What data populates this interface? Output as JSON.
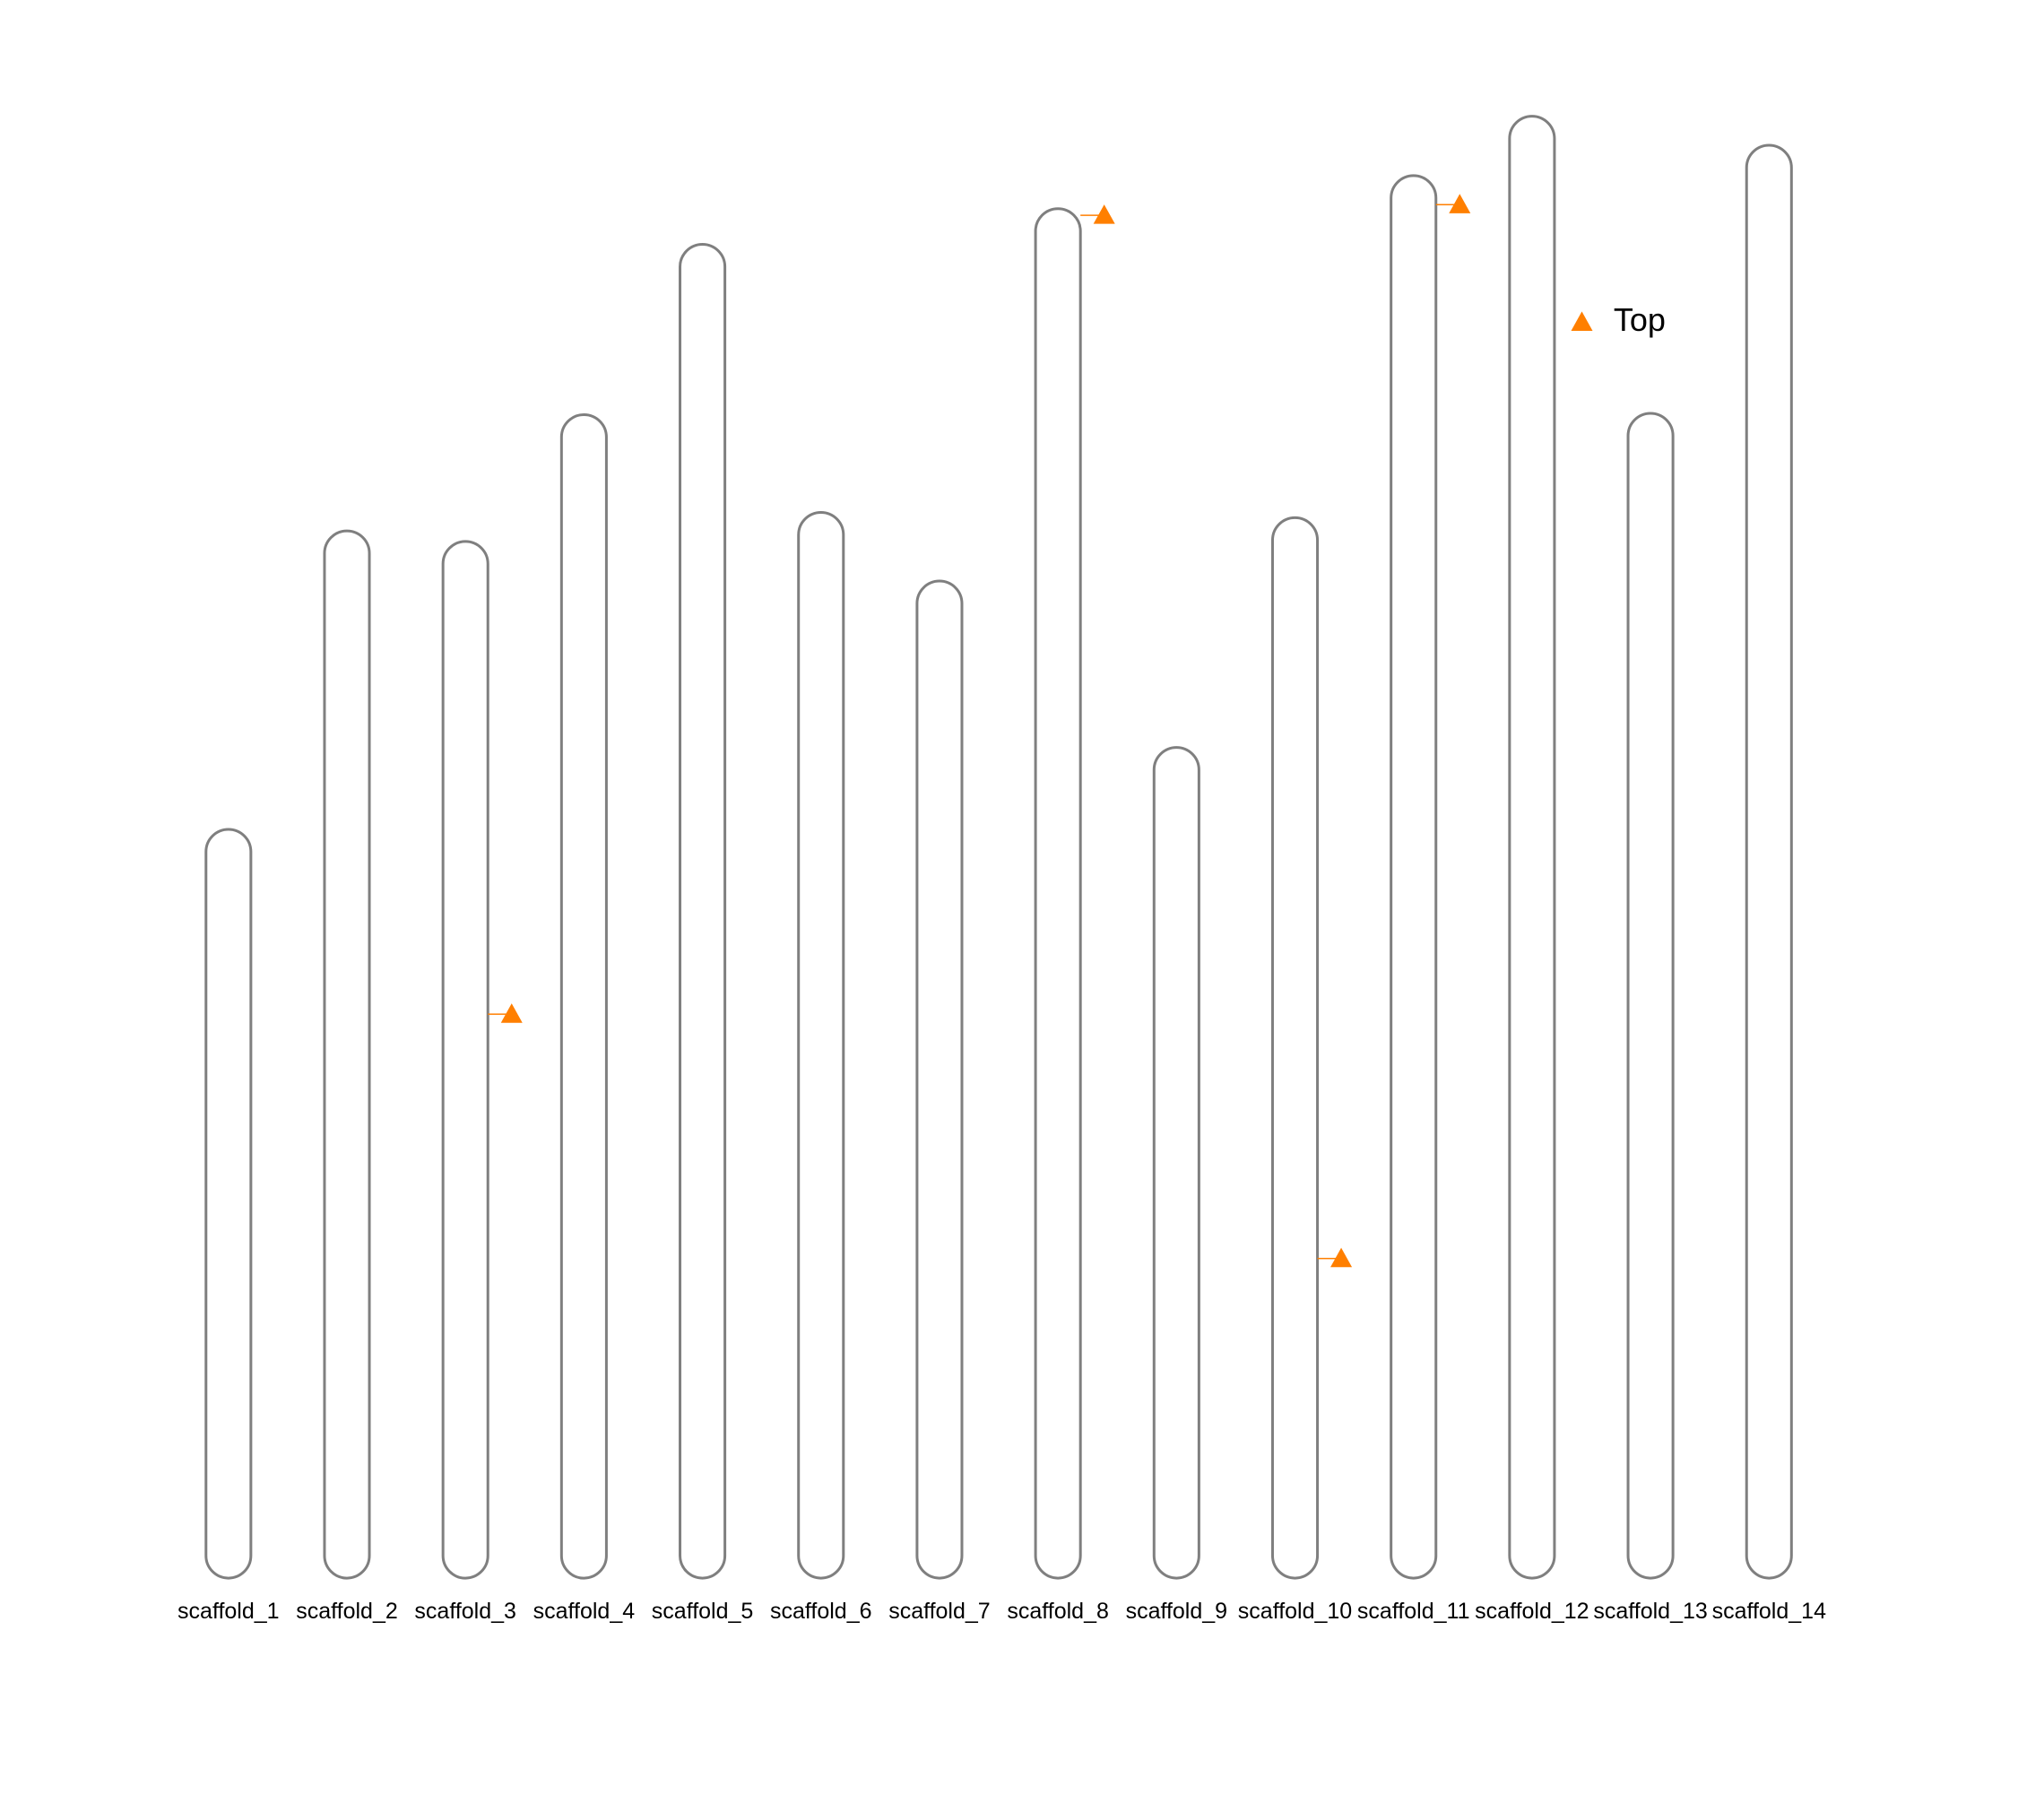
{
  "chart_data": {
    "type": "ideogram",
    "categories": [
      "scaffold_1",
      "scaffold_2",
      "scaffold_3",
      "scaffold_4",
      "scaffold_5",
      "scaffold_6",
      "scaffold_7",
      "scaffold_8",
      "scaffold_9",
      "scaffold_10",
      "scaffold_11",
      "scaffold_12",
      "scaffold_13",
      "scaffold_14"
    ],
    "values": [
      567,
      793,
      785,
      881,
      1010,
      807,
      755,
      1037,
      629,
      803,
      1062,
      1107,
      882,
      1085
    ],
    "color": "#7f7f7f",
    "markers": {
      "name": "Top",
      "color": "#ff7f00",
      "chromosomes": [
        "scaffold_3",
        "scaffold_8",
        "scaffold_10",
        "scaffold_11"
      ],
      "values": [
        358,
        5,
        561,
        22
      ]
    },
    "legend": "upper right"
  }
}
